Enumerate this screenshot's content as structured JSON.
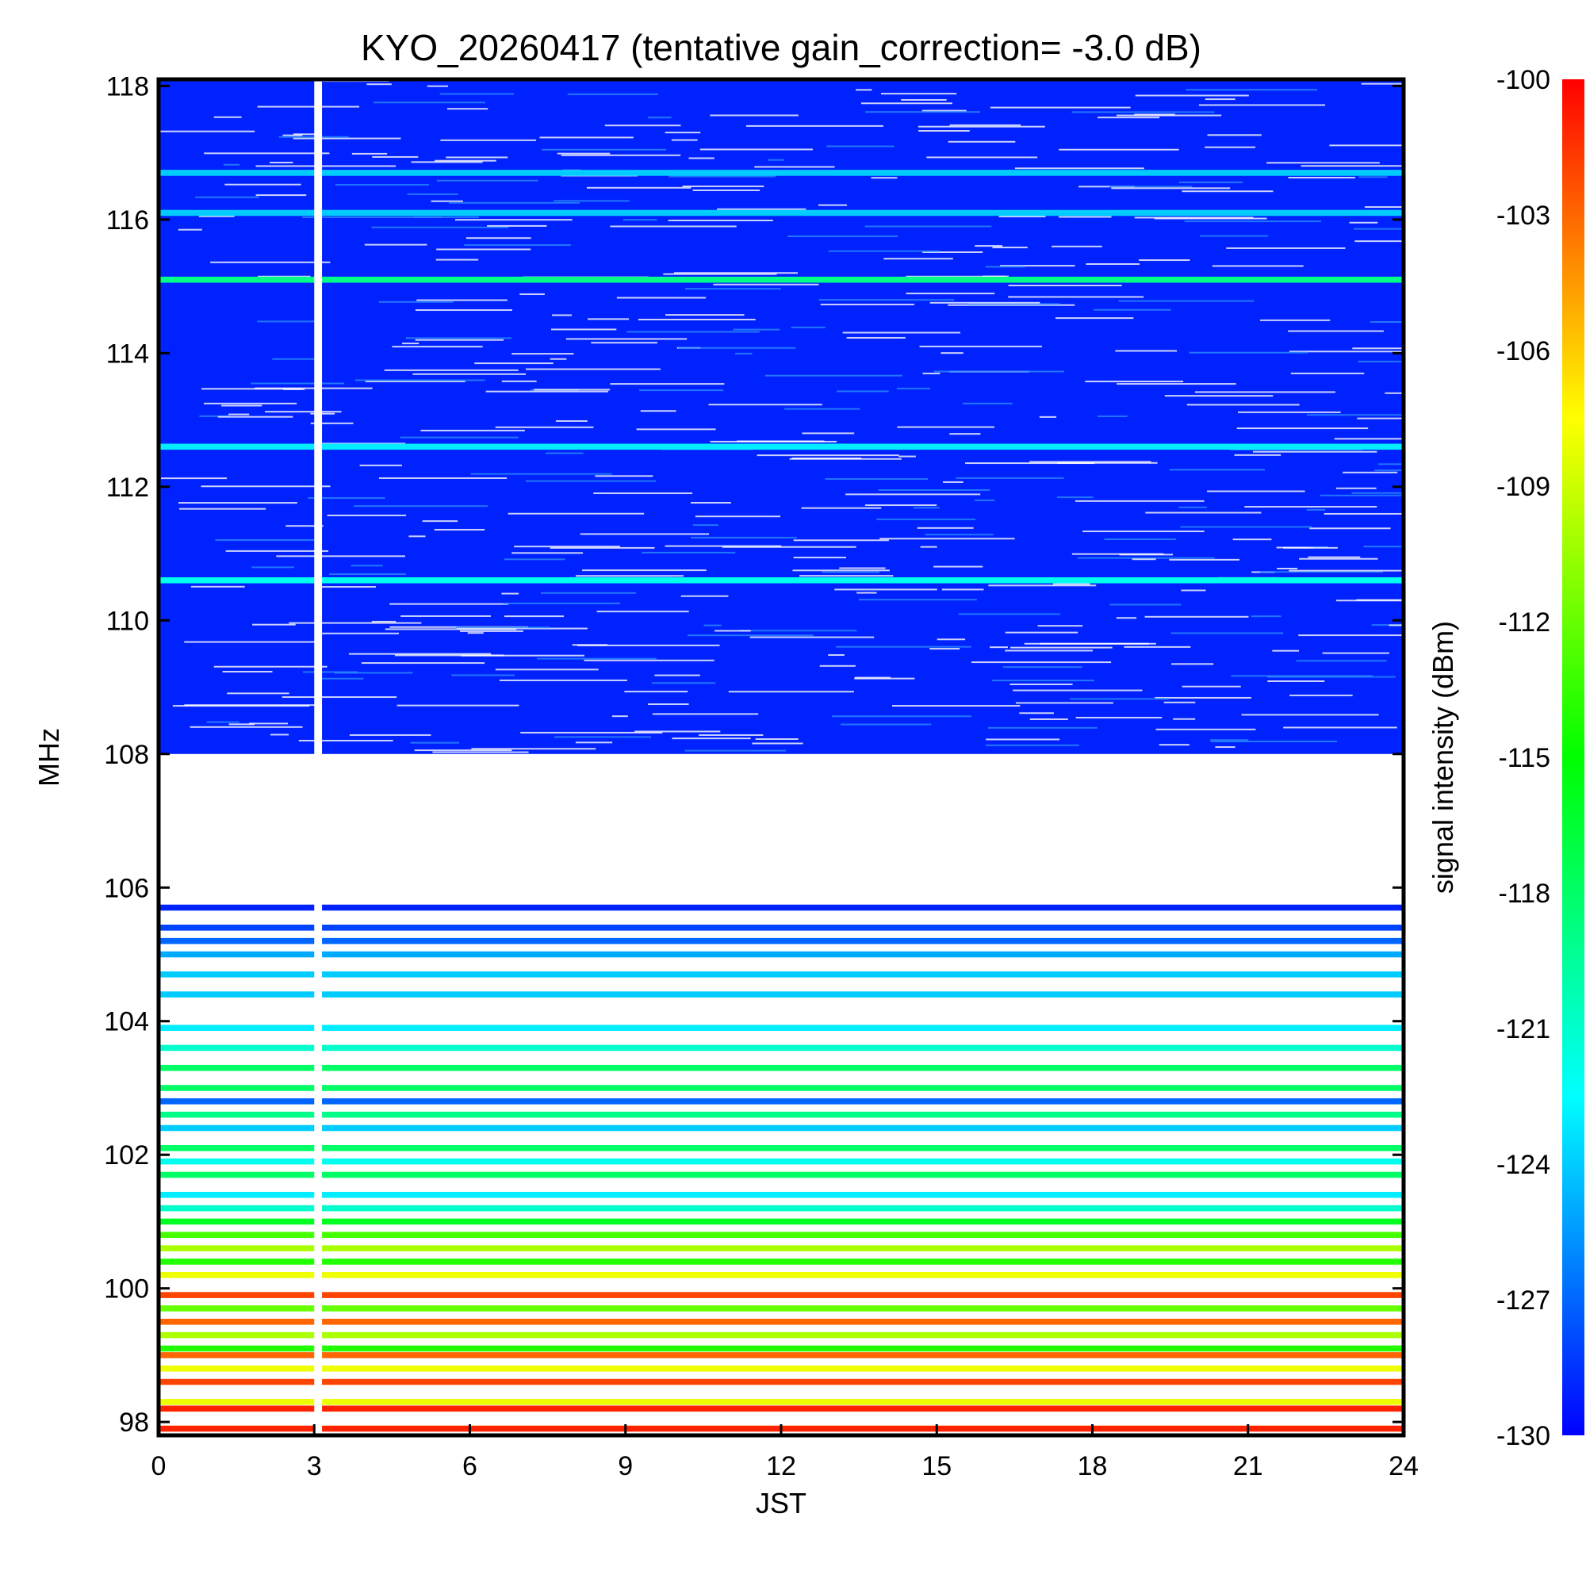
{
  "chart_data": {
    "type": "heatmap",
    "title": "KYO_20260417 (tentative gain_correction= -3.0 dB)",
    "xlabel": "JST",
    "ylabel": "MHz",
    "xlim": [
      0,
      24
    ],
    "ylim": [
      97.8,
      118.1
    ],
    "x_ticks": [
      0,
      3,
      6,
      9,
      12,
      15,
      18,
      21,
      24
    ],
    "y_ticks": [
      98,
      100,
      102,
      104,
      106,
      108,
      110,
      112,
      114,
      116,
      118
    ],
    "colorbar": {
      "label": "signal intensity (dBm)",
      "range": [
        -130,
        -100
      ],
      "ticks": [
        -100,
        -103,
        -106,
        -109,
        -112,
        -115,
        -118,
        -121,
        -124,
        -127,
        -130
      ],
      "colormap": [
        "#0000ff",
        "#0080ff",
        "#00ffff",
        "#00ff80",
        "#00ff00",
        "#80ff00",
        "#ffff00",
        "#ff8000",
        "#ff0000"
      ]
    },
    "data_gap_jst": [
      3.0,
      3.15
    ],
    "fm_band_mhz": [
      97.8,
      108.0
    ],
    "air_band_mhz": [
      108.0,
      118.1
    ],
    "background_dbm_air_band": -129,
    "strong_stations": [
      {
        "freq_mhz": 97.9,
        "dbm": -101
      },
      {
        "freq_mhz": 98.2,
        "dbm": -101
      },
      {
        "freq_mhz": 98.3,
        "dbm": -108
      },
      {
        "freq_mhz": 98.6,
        "dbm": -102
      },
      {
        "freq_mhz": 98.8,
        "dbm": -108
      },
      {
        "freq_mhz": 99.0,
        "dbm": -103
      },
      {
        "freq_mhz": 99.1,
        "dbm": -114
      },
      {
        "freq_mhz": 99.3,
        "dbm": -110
      },
      {
        "freq_mhz": 99.5,
        "dbm": -103
      },
      {
        "freq_mhz": 99.7,
        "dbm": -112
      },
      {
        "freq_mhz": 99.9,
        "dbm": -102
      },
      {
        "freq_mhz": 100.2,
        "dbm": -108
      },
      {
        "freq_mhz": 100.4,
        "dbm": -114
      },
      {
        "freq_mhz": 100.6,
        "dbm": -110
      },
      {
        "freq_mhz": 100.8,
        "dbm": -113
      },
      {
        "freq_mhz": 101.0,
        "dbm": -116
      },
      {
        "freq_mhz": 101.2,
        "dbm": -121
      },
      {
        "freq_mhz": 101.4,
        "dbm": -123
      },
      {
        "freq_mhz": 101.7,
        "dbm": -118
      },
      {
        "freq_mhz": 101.9,
        "dbm": -122
      },
      {
        "freq_mhz": 102.1,
        "dbm": -118
      },
      {
        "freq_mhz": 102.4,
        "dbm": -124
      },
      {
        "freq_mhz": 102.6,
        "dbm": -119
      },
      {
        "freq_mhz": 102.8,
        "dbm": -127
      },
      {
        "freq_mhz": 103.0,
        "dbm": -118
      },
      {
        "freq_mhz": 103.3,
        "dbm": -118
      },
      {
        "freq_mhz": 103.6,
        "dbm": -121
      },
      {
        "freq_mhz": 103.9,
        "dbm": -123
      },
      {
        "freq_mhz": 104.4,
        "dbm": -124
      },
      {
        "freq_mhz": 104.7,
        "dbm": -124
      },
      {
        "freq_mhz": 105.0,
        "dbm": -125
      },
      {
        "freq_mhz": 105.2,
        "dbm": -127
      },
      {
        "freq_mhz": 105.4,
        "dbm": -128
      },
      {
        "freq_mhz": 105.7,
        "dbm": -129
      },
      {
        "freq_mhz": 110.6,
        "dbm": -122
      },
      {
        "freq_mhz": 112.6,
        "dbm": -123
      },
      {
        "freq_mhz": 115.1,
        "dbm": -119
      },
      {
        "freq_mhz": 116.1,
        "dbm": -124
      },
      {
        "freq_mhz": 116.7,
        "dbm": -124
      }
    ]
  }
}
